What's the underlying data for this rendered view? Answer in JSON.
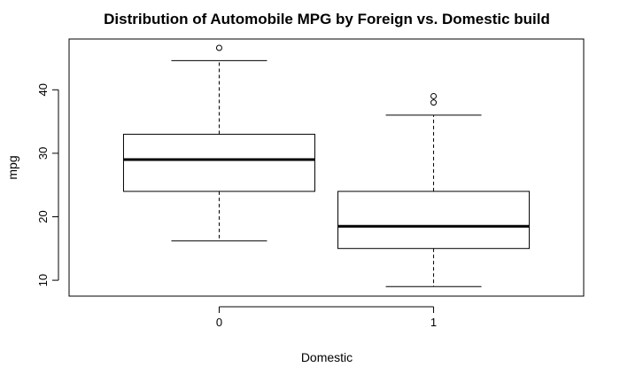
{
  "chart_data": {
    "type": "boxplot",
    "title": "Distribution of Automobile MPG by Foreign vs. Domestic build",
    "xlabel": "Domestic",
    "ylabel": "mpg",
    "categories": [
      "0",
      "1"
    ],
    "y_ticks": [
      10,
      20,
      30,
      40
    ],
    "ylim": [
      7.5,
      48
    ],
    "grid": false,
    "boxes": [
      {
        "category": "0",
        "whisker_low": 16.2,
        "q1": 24.0,
        "median": 29.0,
        "q3": 33.0,
        "whisker_high": 44.6,
        "outliers": [
          46.6
        ]
      },
      {
        "category": "1",
        "whisker_low": 9.0,
        "q1": 15.0,
        "median": 18.5,
        "q3": 24.0,
        "whisker_high": 36.0,
        "outliers": [
          38.0,
          39.0
        ]
      }
    ]
  }
}
